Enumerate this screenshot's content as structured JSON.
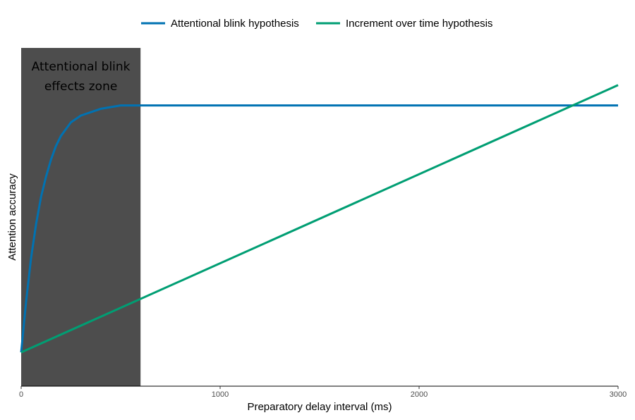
{
  "chart_data": {
    "type": "line",
    "xlabel": "Preparatory delay interval (ms)",
    "ylabel": "Attention accuracy",
    "xlim": [
      0,
      3000
    ],
    "x_ticks": [
      0,
      1000,
      2000,
      3000
    ],
    "x_tick_labels": [
      "0",
      "1000",
      "2000",
      "3000"
    ],
    "ylim": [
      0,
      1
    ],
    "y_ticks_shown": false,
    "grid": false,
    "legend_position": "top",
    "shaded_region": {
      "x_start": 0,
      "x_end": 600,
      "label_lines": [
        "Attentional blink",
        "effects zone"
      ],
      "color": "#4d4d4d"
    },
    "series": [
      {
        "name": "Attentional blink hypothesis",
        "color": "#0072B2",
        "x": [
          0,
          25,
          50,
          75,
          100,
          125,
          150,
          175,
          200,
          250,
          300,
          350,
          400,
          450,
          500,
          550,
          600,
          3000
        ],
        "y": [
          0.1,
          0.25,
          0.38,
          0.48,
          0.56,
          0.62,
          0.67,
          0.71,
          0.74,
          0.78,
          0.8,
          0.81,
          0.82,
          0.825,
          0.83,
          0.83,
          0.83,
          0.83
        ]
      },
      {
        "name": "Increment over time hypothesis",
        "color": "#009E73",
        "x": [
          0,
          3000
        ],
        "y": [
          0.1,
          0.89
        ]
      }
    ]
  }
}
